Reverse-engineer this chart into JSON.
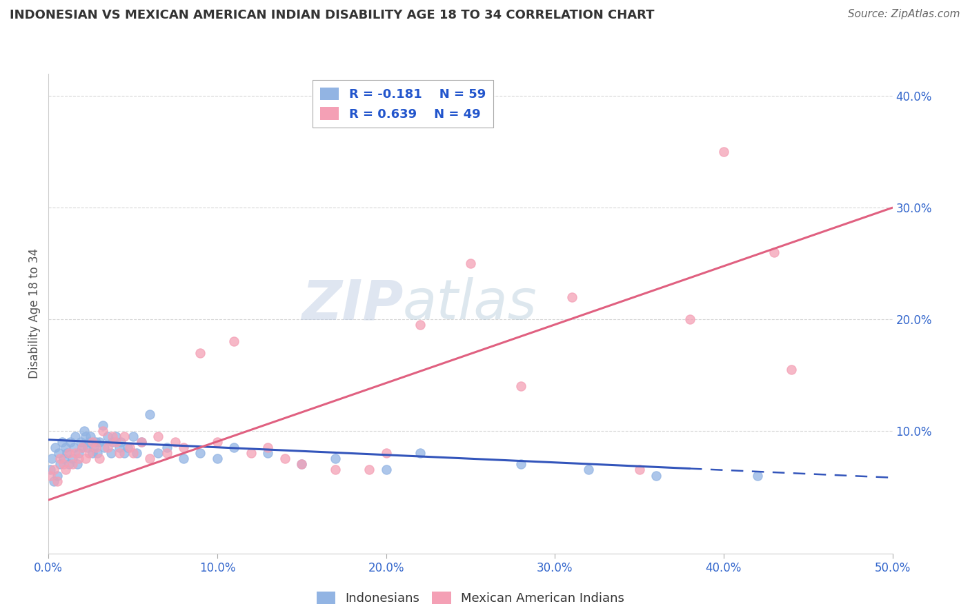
{
  "title": "INDONESIAN VS MEXICAN AMERICAN INDIAN DISABILITY AGE 18 TO 34 CORRELATION CHART",
  "source": "Source: ZipAtlas.com",
  "ylabel_label": "Disability Age 18 to 34",
  "xlim": [
    0.0,
    0.5
  ],
  "ylim": [
    -0.01,
    0.42
  ],
  "xticks": [
    0.0,
    0.1,
    0.2,
    0.3,
    0.4,
    0.5
  ],
  "yticks": [
    0.1,
    0.2,
    0.3,
    0.4
  ],
  "xtick_labels": [
    "0.0%",
    "10.0%",
    "20.0%",
    "30.0%",
    "40.0%",
    "50.0%"
  ],
  "ytick_labels": [
    "10.0%",
    "20.0%",
    "30.0%",
    "40.0%"
  ],
  "indonesian_color": "#92B4E3",
  "mexican_color": "#F4A0B5",
  "indonesian_R": -0.181,
  "indonesian_N": 59,
  "mexican_R": 0.639,
  "mexican_N": 49,
  "legend_R_color": "#2255CC",
  "grid_color": "#CCCCCC",
  "axis_label_color": "#3366CC",
  "background_color": "#FFFFFF",
  "watermark_zip": "ZIP",
  "watermark_atlas": "atlas",
  "indo_line_color": "#3355BB",
  "mex_line_color": "#E06080",
  "indo_line_start_y": 0.092,
  "indo_line_end_y": 0.058,
  "indo_line_solid_end_x": 0.38,
  "mex_line_start_y": 0.038,
  "mex_line_end_y": 0.3,
  "indonesian_x": [
    0.001,
    0.002,
    0.003,
    0.004,
    0.005,
    0.006,
    0.007,
    0.008,
    0.009,
    0.01,
    0.011,
    0.012,
    0.013,
    0.014,
    0.015,
    0.016,
    0.017,
    0.018,
    0.019,
    0.02,
    0.021,
    0.022,
    0.023,
    0.024,
    0.025,
    0.026,
    0.027,
    0.028,
    0.029,
    0.03,
    0.032,
    0.033,
    0.035,
    0.037,
    0.038,
    0.04,
    0.042,
    0.043,
    0.045,
    0.047,
    0.05,
    0.052,
    0.055,
    0.06,
    0.065,
    0.07,
    0.08,
    0.09,
    0.1,
    0.11,
    0.13,
    0.15,
    0.17,
    0.2,
    0.22,
    0.28,
    0.32,
    0.36,
    0.42
  ],
  "indonesian_y": [
    0.065,
    0.075,
    0.055,
    0.085,
    0.06,
    0.08,
    0.07,
    0.09,
    0.075,
    0.085,
    0.08,
    0.07,
    0.09,
    0.075,
    0.085,
    0.095,
    0.07,
    0.08,
    0.09,
    0.085,
    0.1,
    0.095,
    0.085,
    0.09,
    0.095,
    0.08,
    0.085,
    0.09,
    0.08,
    0.09,
    0.105,
    0.085,
    0.095,
    0.08,
    0.09,
    0.095,
    0.085,
    0.09,
    0.08,
    0.085,
    0.095,
    0.08,
    0.09,
    0.115,
    0.08,
    0.085,
    0.075,
    0.08,
    0.075,
    0.085,
    0.08,
    0.07,
    0.075,
    0.065,
    0.08,
    0.07,
    0.065,
    0.06,
    0.06
  ],
  "mexican_x": [
    0.001,
    0.003,
    0.005,
    0.007,
    0.009,
    0.01,
    0.012,
    0.014,
    0.016,
    0.018,
    0.02,
    0.022,
    0.024,
    0.026,
    0.028,
    0.03,
    0.032,
    0.035,
    0.038,
    0.04,
    0.042,
    0.045,
    0.048,
    0.05,
    0.055,
    0.06,
    0.065,
    0.07,
    0.075,
    0.08,
    0.09,
    0.1,
    0.11,
    0.12,
    0.13,
    0.14,
    0.15,
    0.17,
    0.19,
    0.2,
    0.22,
    0.25,
    0.28,
    0.31,
    0.35,
    0.38,
    0.4,
    0.43,
    0.44
  ],
  "mexican_y": [
    0.06,
    0.065,
    0.055,
    0.075,
    0.07,
    0.065,
    0.08,
    0.07,
    0.08,
    0.075,
    0.085,
    0.075,
    0.08,
    0.09,
    0.085,
    0.075,
    0.1,
    0.085,
    0.095,
    0.09,
    0.08,
    0.095,
    0.085,
    0.08,
    0.09,
    0.075,
    0.095,
    0.08,
    0.09,
    0.085,
    0.17,
    0.09,
    0.18,
    0.08,
    0.085,
    0.075,
    0.07,
    0.065,
    0.065,
    0.08,
    0.195,
    0.25,
    0.14,
    0.22,
    0.065,
    0.2,
    0.35,
    0.26,
    0.155
  ]
}
